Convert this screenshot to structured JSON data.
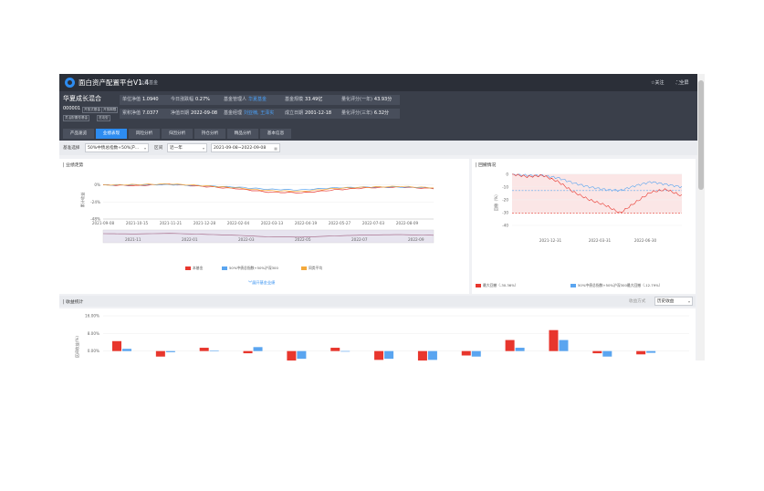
{
  "app": {
    "title": "面白资产配置平台V1.4",
    "subtitle": "公募基金",
    "follow_label": "关注",
    "fullscreen_label": "全屏"
  },
  "fund": {
    "name": "华夏成长混合",
    "code": "000001",
    "tags": [
      "开放式基金",
      "开放期限",
      "灵活配置型基金",
      "进攻型"
    ],
    "metrics": [
      {
        "label": "单位净值",
        "value": "1.0940",
        "style": "plain"
      },
      {
        "label": "今日涨跌幅",
        "value": "0.27%",
        "style": "plain"
      },
      {
        "label": "基金管理人",
        "value": "华夏基金",
        "style": "link"
      },
      {
        "label": "基金规模",
        "value": "33.49亿",
        "style": "plain"
      },
      {
        "label": "量化评分(一年)",
        "value": "43.93分",
        "style": "plain"
      },
      {
        "label": "累积净值",
        "value": "7.0377",
        "style": "plain"
      },
      {
        "label": "净值日期",
        "value": "2022-09-08",
        "style": "plain"
      },
      {
        "label": "基金经理",
        "value": "刘亚楠, 王泽实",
        "style": "link"
      },
      {
        "label": "成立日期",
        "value": "2001-12-18",
        "style": "plain"
      },
      {
        "label": "量化评分(三年)",
        "value": "6.32分",
        "style": "plain"
      }
    ]
  },
  "tabs": [
    "产品速览",
    "业绩表现",
    "风险分析",
    "归因分析",
    "持仓分析",
    "精品分析",
    "基本信息"
  ],
  "active_tab": 1,
  "filters": {
    "benchmark_label": "基准选择",
    "benchmark_value": "50%中债总指数+50%沪...",
    "range_label": "区间",
    "range_value": "近一年",
    "date_value": "2021-09-08~2022-09-08"
  },
  "performance": {
    "title": "业绩走势",
    "ylabel": "累计收益",
    "expand_label": "展开基金业绩",
    "yticks": [
      "0%",
      "-24%",
      "-48%"
    ],
    "xticks": [
      "2021-09-08",
      "2021-10-15",
      "2021-11-21",
      "2021-12-28",
      "2022-02-04",
      "2022-03-13",
      "2022-04-19",
      "2022-05-27",
      "2022-07-03",
      "2022-08-09"
    ],
    "navigator_ticks": [
      "2021-11",
      "2022-01",
      "2022-03",
      "2022-05",
      "2022-07",
      "2022-09"
    ],
    "legend": [
      {
        "name": "本基金",
        "color": "#e8362d"
      },
      {
        "name": "50%中债总指数+50%沪深300",
        "color": "#5aa5f0"
      },
      {
        "name": "同类平均",
        "color": "#f4a93b"
      }
    ]
  },
  "drawdown": {
    "title": "回撤情况",
    "ylabel": "回撤（%）",
    "yticks": [
      "0",
      "-10",
      "-20",
      "-30",
      "-40"
    ],
    "xticks": [
      "2021-12-31",
      "2022-03-31",
      "2022-06-30"
    ],
    "legend": [
      {
        "name": "最大回撤（-30.36%）",
        "color": "#e8362d"
      },
      {
        "name": "50%中债总指数+50%沪深300最大回撤（-12.79%）",
        "color": "#5aa5f0"
      }
    ]
  },
  "returns": {
    "title": "收益统计",
    "method_label": "收益方式",
    "method_value": "历史收益",
    "ylabel": "区间收益(%)",
    "yticks": [
      "16.00%",
      "8.00%",
      "0.00%"
    ]
  },
  "chart_data": [
    {
      "type": "line",
      "title": "业绩走势",
      "ylabel": "累计收益",
      "x": [
        "2021-09-08",
        "2021-10-15",
        "2021-11-21",
        "2021-12-28",
        "2022-02-04",
        "2022-03-13",
        "2022-04-19",
        "2022-05-27",
        "2022-07-03",
        "2022-08-09",
        "2022-09-08"
      ],
      "ylim": [
        -48,
        6
      ],
      "series": [
        {
          "name": "本基金",
          "color": "#e8362d",
          "values": [
            0,
            -1,
            1,
            -2,
            -5,
            -10,
            -11,
            -7,
            -4,
            -3,
            -5
          ]
        },
        {
          "name": "50%中债总指数+50%沪深300",
          "color": "#5aa5f0",
          "values": [
            0,
            0,
            0.5,
            -1,
            -3,
            -6,
            -7,
            -4,
            -3,
            -3,
            -4
          ]
        },
        {
          "name": "同类平均",
          "color": "#f4a93b",
          "values": [
            0,
            0.5,
            1.5,
            -1,
            -4,
            -8,
            -9,
            -5,
            -3,
            -2,
            -4
          ]
        }
      ]
    },
    {
      "type": "area",
      "title": "回撤情况",
      "ylabel": "回撤（%）",
      "x": [
        "2021-09-08",
        "2021-10-15",
        "2021-11-21",
        "2021-12-31",
        "2022-02-04",
        "2022-03-13",
        "2022-03-31",
        "2022-04-26",
        "2022-05-27",
        "2022-06-30",
        "2022-08-09",
        "2022-09-08"
      ],
      "ylim": [
        -45,
        2
      ],
      "series": [
        {
          "name": "本基金",
          "color": "#e8362d",
          "values": [
            0,
            -2,
            -1,
            -6,
            -14,
            -20,
            -24,
            -30.36,
            -22,
            -14,
            -12,
            -17
          ]
        },
        {
          "name": "50%中债总指数+50%沪深300",
          "color": "#5aa5f0",
          "values": [
            0,
            -1,
            -1,
            -3,
            -7,
            -10,
            -12,
            -12.79,
            -9,
            -6,
            -8,
            -10
          ]
        }
      ],
      "reference_lines": [
        {
          "name": "最大回撤",
          "value": -30.36,
          "color": "#e8362d"
        },
        {
          "name": "基准最大回撤",
          "value": -12.79,
          "color": "#5aa5f0"
        }
      ]
    },
    {
      "type": "bar",
      "title": "收益统计",
      "ylabel": "区间收益(%)",
      "ylim": [
        -8,
        16
      ],
      "series": [
        {
          "name": "本基金",
          "color": "#e8362d",
          "values": [
            4.5,
            -2.5,
            1.5,
            -1,
            -5,
            1.5,
            -4,
            -5,
            -2,
            5,
            9.5,
            -1,
            -1.5
          ]
        },
        {
          "name": "50%中债总指数+50%沪深300",
          "color": "#5aa5f0",
          "values": [
            1,
            -0.5,
            0.2,
            1.8,
            -3.5,
            0,
            -3.5,
            -4,
            -2.5,
            1.5,
            5,
            -2.5,
            -0.8
          ]
        }
      ]
    }
  ]
}
